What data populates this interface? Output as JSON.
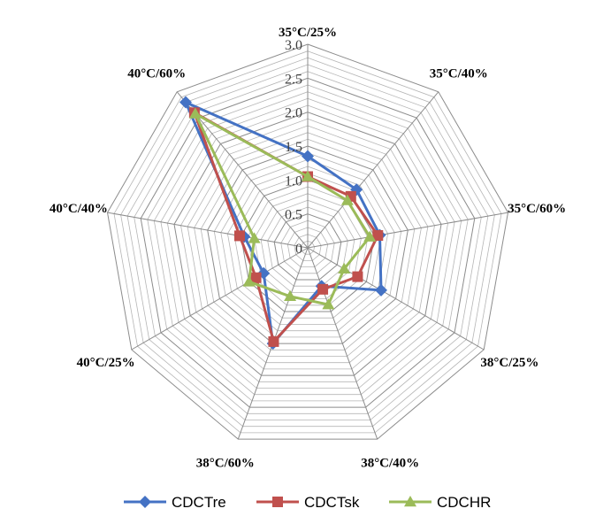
{
  "chart_data": {
    "type": "radar",
    "categories": [
      "35°C/25%",
      "35°C/40%",
      "35°C/60%",
      "38°C/25%",
      "38°C/40%",
      "38°C/60%",
      "40°C/25%",
      "40°C/40%",
      "40°C/60%"
    ],
    "rmin": 0,
    "rmax": 3.0,
    "ticks": [
      "0",
      "0.5",
      "1.0",
      "1.5",
      "2.0",
      "2.5",
      "3.0"
    ],
    "minor_step": 0.1,
    "series": [
      {
        "name": "CDCTre",
        "color": "#4472C4",
        "marker": "diamond",
        "values": [
          1.35,
          1.12,
          1.08,
          1.25,
          0.6,
          1.5,
          0.75,
          0.95,
          2.8
        ]
      },
      {
        "name": "CDCTsk",
        "color": "#C0504D",
        "marker": "square",
        "values": [
          1.05,
          0.99,
          1.05,
          0.85,
          0.65,
          1.47,
          0.88,
          1.02,
          2.6
        ]
      },
      {
        "name": "CDCHR",
        "color": "#9BBB59",
        "marker": "triangle",
        "values": [
          1.05,
          0.91,
          0.93,
          0.62,
          0.89,
          0.76,
          1.0,
          0.8,
          2.58
        ]
      }
    ]
  }
}
